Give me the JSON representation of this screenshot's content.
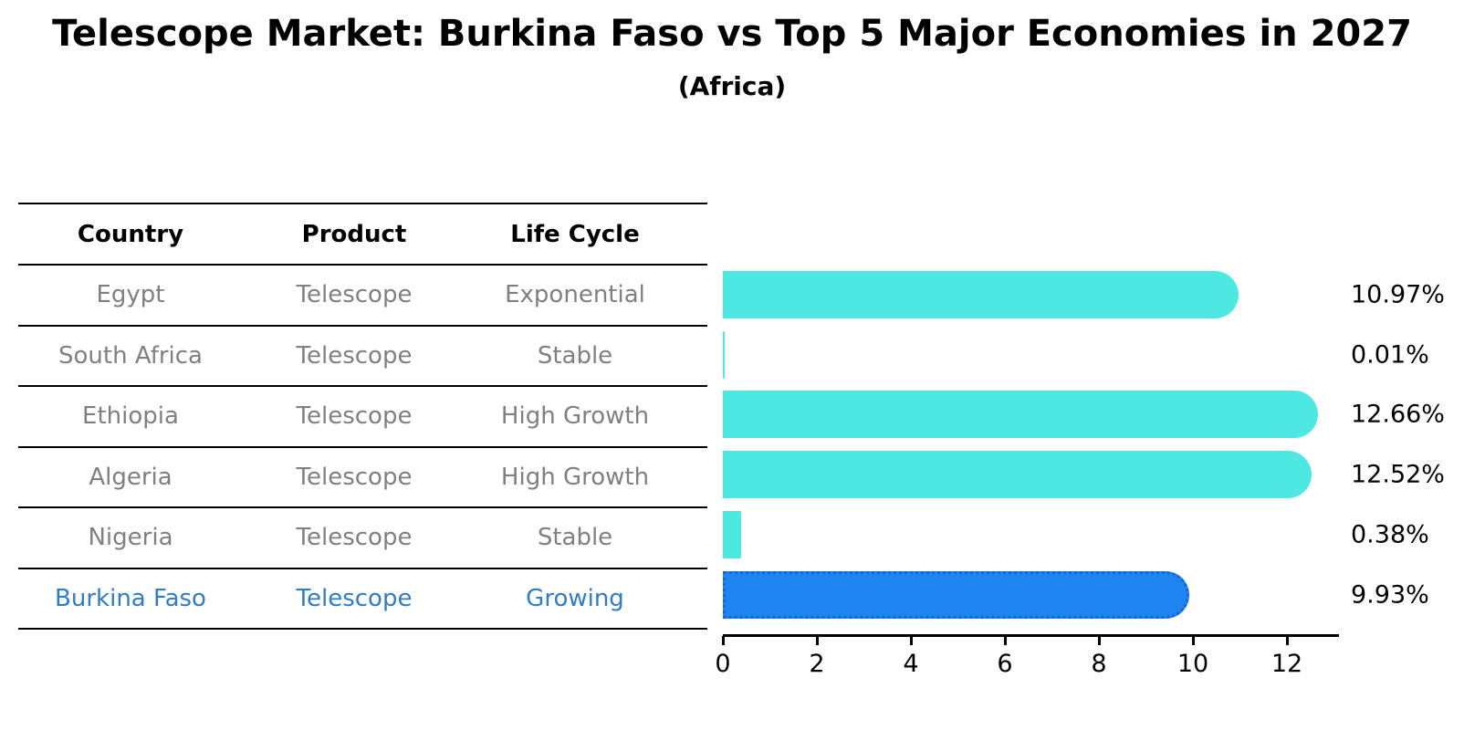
{
  "title": "Telescope Market: Burkina Faso vs Top 5 Major Economies in 2027",
  "subtitle": "(Africa)",
  "table": {
    "headers": [
      "Country",
      "Product",
      "Life Cycle"
    ],
    "rows": [
      {
        "country": "Egypt",
        "product": "Telescope",
        "life_cycle": "Exponential",
        "highlight": false
      },
      {
        "country": "South Africa",
        "product": "Telescope",
        "life_cycle": "Stable",
        "highlight": false
      },
      {
        "country": "Ethiopia",
        "product": "Telescope",
        "life_cycle": "High Growth",
        "highlight": false
      },
      {
        "country": "Algeria",
        "product": "Telescope",
        "life_cycle": "High Growth",
        "highlight": false
      },
      {
        "country": "Nigeria",
        "product": "Telescope",
        "life_cycle": "Stable",
        "highlight": false
      },
      {
        "country": "Burkina Faso",
        "product": "Telescope",
        "life_cycle": "Growing",
        "highlight": true
      }
    ]
  },
  "chart_data": {
    "type": "bar",
    "orientation": "horizontal",
    "title": "Telescope Market: Burkina Faso vs Top 5 Major Economies in 2027",
    "subtitle": "(Africa)",
    "categories": [
      "Egypt",
      "South Africa",
      "Ethiopia",
      "Algeria",
      "Nigeria",
      "Burkina Faso"
    ],
    "values": [
      10.97,
      0.01,
      12.66,
      12.52,
      0.38,
      9.93
    ],
    "value_labels": [
      "10.97%",
      "0.01%",
      "12.66%",
      "12.52%",
      "0.38%",
      "9.93%"
    ],
    "unit": "%",
    "xlim": [
      0,
      13.1
    ],
    "xticks": [
      0,
      2,
      4,
      6,
      8,
      10,
      12
    ],
    "grid": false,
    "legend": false,
    "highlight_index": 5,
    "bar_color": "#4de8e1",
    "highlight_bar_color": "#1e84ef",
    "highlight_bar_edge_color": "#1565d8",
    "highlight_text_color": "#2e7dc9",
    "row_text_color": "#808080",
    "axis_color": "#000000"
  }
}
